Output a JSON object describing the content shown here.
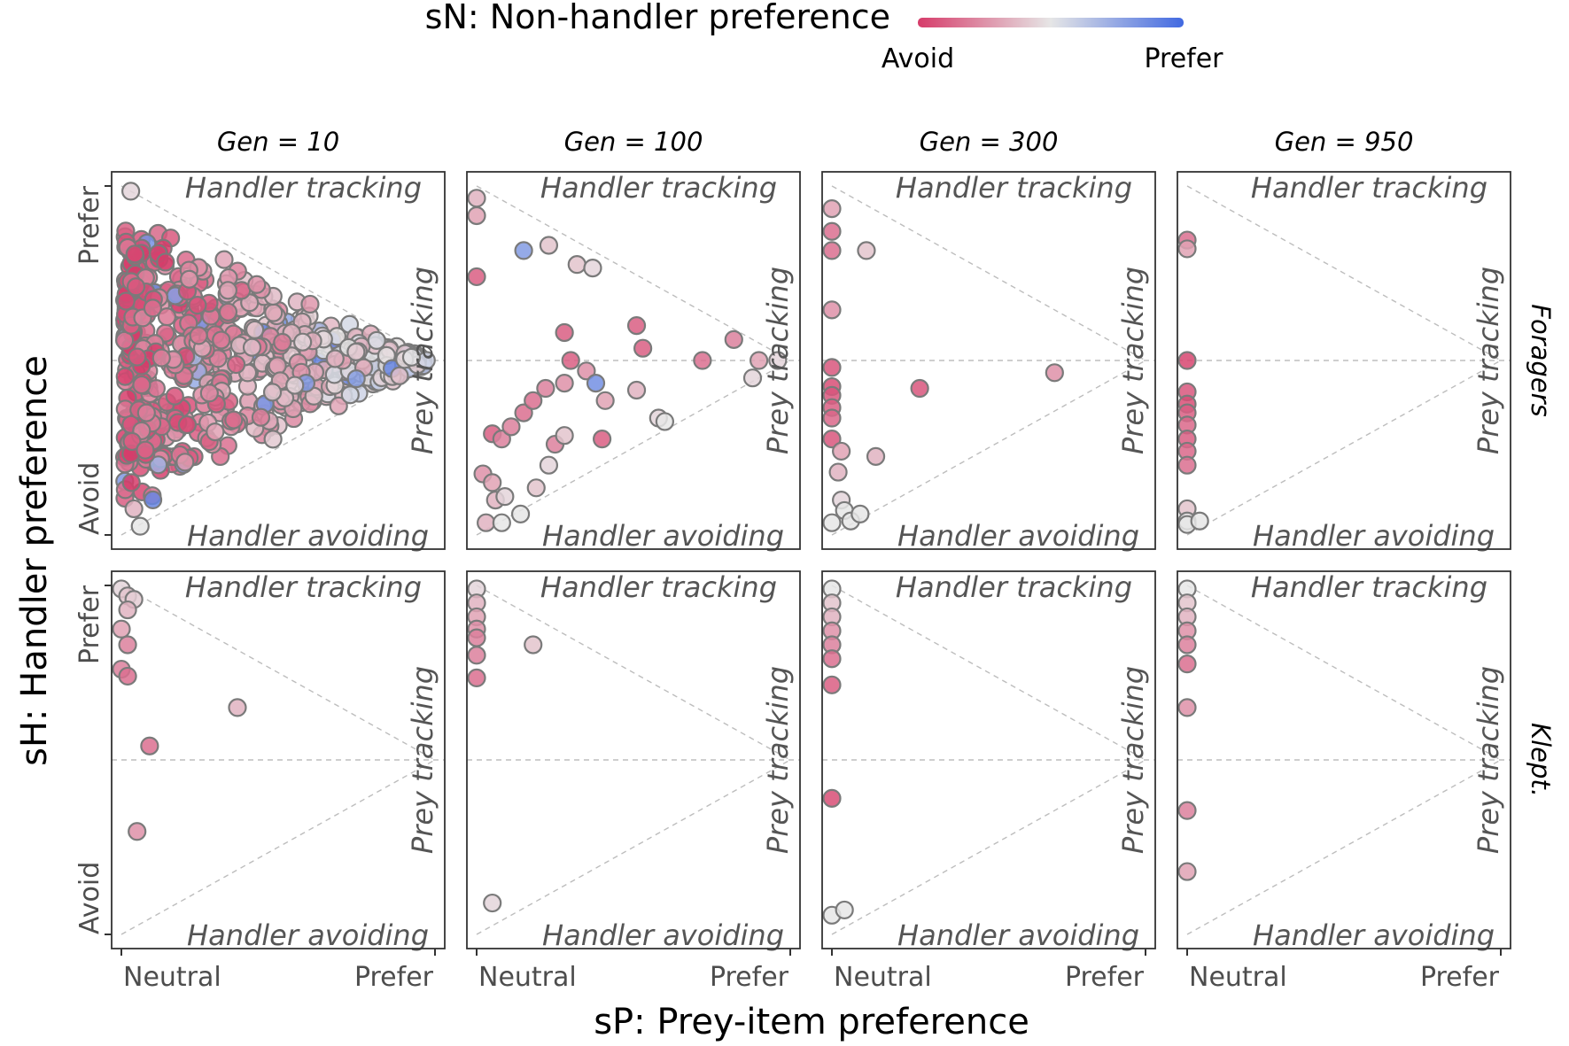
{
  "legend": {
    "title": "sN: Non-handler preference",
    "low_label": "Avoid",
    "high_label": "Prefer",
    "colors": {
      "low": "#D63C6A",
      "mid": "#E6E6E6",
      "high": "#4169E1"
    }
  },
  "axes": {
    "xlabel": "sP: Prey-item preference",
    "ylabel": "sH: Handler preference",
    "x_ticks": [
      "Neutral",
      "Prefer"
    ],
    "y_ticks": [
      "Avoid",
      "Prefer"
    ]
  },
  "annotations": {
    "top": "Handler tracking",
    "bottom": "Handler avoiding",
    "right": "Prey tracking"
  },
  "chart_data": {
    "type": "scatter",
    "facets": {
      "columns": [
        "Gen = 10",
        "Gen = 100",
        "Gen = 300",
        "Gen = 950"
      ],
      "rows": [
        "Foragers",
        "Klept."
      ]
    },
    "xlim": [
      0,
      1
    ],
    "ylim": [
      -1,
      1
    ],
    "color_scale": {
      "variable": "sN",
      "range": [
        -1,
        1
      ]
    },
    "reference_lines": [
      {
        "type": "hline",
        "y": 0
      },
      {
        "type": "abline",
        "from": [
          0,
          1
        ],
        "to": [
          1,
          0
        ]
      },
      {
        "type": "abline",
        "from": [
          0,
          -1
        ],
        "to": [
          1,
          0
        ]
      }
    ],
    "panels": [
      {
        "row": "Foragers",
        "column": "Gen = 10",
        "cloud": {
          "shape": "triangle",
          "apex_x": 1.0,
          "apex_y": 0.0,
          "n": 650
        },
        "points": [
          [
            0.03,
            0.97,
            -0.1
          ],
          [
            0.05,
            0.02,
            -0.85
          ],
          [
            0.08,
            -0.3,
            -0.6
          ],
          [
            0.1,
            0.3,
            -0.7
          ],
          [
            0.04,
            -0.85,
            -0.3
          ],
          [
            0.06,
            -0.95,
            0.0
          ]
        ]
      },
      {
        "row": "Foragers",
        "column": "Gen = 100",
        "points": [
          [
            0.0,
            0.93,
            -0.3
          ],
          [
            0.0,
            0.83,
            -0.4
          ],
          [
            0.0,
            0.48,
            -0.8
          ],
          [
            0.15,
            0.63,
            0.6
          ],
          [
            0.23,
            0.66,
            -0.2
          ],
          [
            0.32,
            0.55,
            -0.2
          ],
          [
            0.37,
            0.53,
            -0.1
          ],
          [
            0.02,
            -0.65,
            -0.5
          ],
          [
            0.05,
            -0.7,
            -0.4
          ],
          [
            0.06,
            -0.8,
            -0.3
          ],
          [
            0.09,
            -0.78,
            -0.1
          ],
          [
            0.03,
            -0.93,
            -0.3
          ],
          [
            0.08,
            -0.93,
            0.0
          ],
          [
            0.14,
            -0.88,
            0.0
          ],
          [
            0.19,
            -0.73,
            -0.2
          ],
          [
            0.23,
            -0.6,
            -0.1
          ],
          [
            0.25,
            -0.48,
            -0.6
          ],
          [
            0.28,
            -0.43,
            -0.2
          ],
          [
            0.05,
            -0.42,
            -0.8
          ],
          [
            0.08,
            -0.45,
            -0.6
          ],
          [
            0.11,
            -0.38,
            -0.6
          ],
          [
            0.15,
            -0.3,
            -0.7
          ],
          [
            0.18,
            -0.23,
            -0.7
          ],
          [
            0.22,
            -0.16,
            -0.6
          ],
          [
            0.28,
            -0.13,
            -0.5
          ],
          [
            0.3,
            0.0,
            -0.8
          ],
          [
            0.28,
            0.16,
            -0.8
          ],
          [
            0.35,
            -0.06,
            -0.5
          ],
          [
            0.38,
            -0.13,
            0.7
          ],
          [
            0.41,
            -0.23,
            -0.4
          ],
          [
            0.4,
            -0.45,
            -0.8
          ],
          [
            0.51,
            -0.17,
            -0.3
          ],
          [
            0.58,
            -0.33,
            -0.1
          ],
          [
            0.6,
            -0.35,
            0.0
          ],
          [
            0.51,
            0.2,
            -0.8
          ],
          [
            0.53,
            0.07,
            -0.8
          ],
          [
            0.72,
            0.0,
            -0.7
          ],
          [
            0.82,
            0.12,
            -0.6
          ],
          [
            0.9,
            0.0,
            -0.4
          ],
          [
            0.96,
            0.0,
            -0.1
          ],
          [
            0.88,
            -0.1,
            -0.1
          ]
        ]
      },
      {
        "row": "Foragers",
        "column": "Gen = 300",
        "points": [
          [
            0.0,
            0.87,
            -0.4
          ],
          [
            0.0,
            0.74,
            -0.7
          ],
          [
            0.0,
            0.63,
            -0.7
          ],
          [
            0.11,
            0.63,
            -0.2
          ],
          [
            0.0,
            0.29,
            -0.5
          ],
          [
            0.0,
            -0.04,
            -0.85
          ],
          [
            0.0,
            -0.15,
            -0.9
          ],
          [
            0.0,
            -0.2,
            -0.85
          ],
          [
            0.0,
            -0.27,
            -0.8
          ],
          [
            0.0,
            -0.33,
            -0.75
          ],
          [
            0.0,
            -0.45,
            -0.85
          ],
          [
            0.03,
            -0.52,
            -0.4
          ],
          [
            0.02,
            -0.64,
            -0.3
          ],
          [
            0.14,
            -0.55,
            -0.3
          ],
          [
            0.28,
            -0.16,
            -0.85
          ],
          [
            0.71,
            -0.07,
            -0.5
          ],
          [
            0.03,
            -0.8,
            -0.1
          ],
          [
            0.04,
            -0.86,
            0.0
          ],
          [
            0.0,
            -0.93,
            0.0
          ],
          [
            0.06,
            -0.92,
            0.0
          ],
          [
            0.09,
            -0.88,
            0.0
          ]
        ]
      },
      {
        "row": "Foragers",
        "column": "Gen = 950",
        "points": [
          [
            0.0,
            0.69,
            -0.7
          ],
          [
            0.0,
            0.64,
            -0.4
          ],
          [
            0.0,
            0.0,
            -0.95
          ],
          [
            0.0,
            -0.18,
            -0.85
          ],
          [
            0.0,
            -0.25,
            -0.9
          ],
          [
            0.0,
            -0.3,
            -0.8
          ],
          [
            0.0,
            -0.37,
            -0.75
          ],
          [
            0.0,
            -0.45,
            -0.8
          ],
          [
            0.0,
            -0.52,
            -0.75
          ],
          [
            0.0,
            -0.6,
            -0.7
          ],
          [
            0.0,
            -0.85,
            -0.2
          ],
          [
            0.0,
            -0.92,
            0.0
          ],
          [
            0.0,
            -0.94,
            0.0
          ],
          [
            0.04,
            -0.92,
            0.0
          ]
        ]
      },
      {
        "row": "Klept.",
        "column": "Gen = 10",
        "points": [
          [
            0.0,
            0.98,
            -0.1
          ],
          [
            0.02,
            0.94,
            -0.2
          ],
          [
            0.04,
            0.92,
            -0.15
          ],
          [
            0.02,
            0.86,
            -0.3
          ],
          [
            0.0,
            0.75,
            -0.4
          ],
          [
            0.02,
            0.66,
            -0.6
          ],
          [
            0.0,
            0.52,
            -0.6
          ],
          [
            0.02,
            0.48,
            -0.7
          ],
          [
            0.37,
            0.3,
            -0.3
          ],
          [
            0.09,
            0.08,
            -0.7
          ],
          [
            0.05,
            -0.41,
            -0.5
          ]
        ]
      },
      {
        "row": "Klept.",
        "column": "Gen = 100",
        "points": [
          [
            0.0,
            0.98,
            -0.1
          ],
          [
            0.0,
            0.9,
            -0.3
          ],
          [
            0.0,
            0.82,
            -0.4
          ],
          [
            0.0,
            0.75,
            -0.5
          ],
          [
            0.0,
            0.7,
            -0.6
          ],
          [
            0.0,
            0.6,
            -0.6
          ],
          [
            0.0,
            0.47,
            -0.7
          ],
          [
            0.18,
            0.66,
            -0.2
          ],
          [
            0.05,
            -0.82,
            -0.1
          ]
        ]
      },
      {
        "row": "Klept.",
        "column": "Gen = 300",
        "points": [
          [
            0.0,
            0.98,
            0.0
          ],
          [
            0.0,
            0.9,
            -0.2
          ],
          [
            0.0,
            0.82,
            -0.3
          ],
          [
            0.0,
            0.74,
            -0.5
          ],
          [
            0.0,
            0.66,
            -0.6
          ],
          [
            0.0,
            0.58,
            -0.7
          ],
          [
            0.0,
            0.43,
            -0.8
          ],
          [
            0.0,
            -0.22,
            -0.9
          ],
          [
            0.0,
            -0.89,
            0.0
          ],
          [
            0.04,
            -0.86,
            0.0
          ]
        ]
      },
      {
        "row": "Klept.",
        "column": "Gen = 950",
        "points": [
          [
            0.0,
            0.98,
            0.0
          ],
          [
            0.0,
            0.9,
            -0.2
          ],
          [
            0.0,
            0.82,
            -0.3
          ],
          [
            0.0,
            0.74,
            -0.5
          ],
          [
            0.0,
            0.66,
            -0.6
          ],
          [
            0.0,
            0.55,
            -0.7
          ],
          [
            0.0,
            0.3,
            -0.5
          ],
          [
            0.0,
            -0.29,
            -0.6
          ],
          [
            0.0,
            -0.64,
            -0.4
          ]
        ]
      }
    ]
  }
}
